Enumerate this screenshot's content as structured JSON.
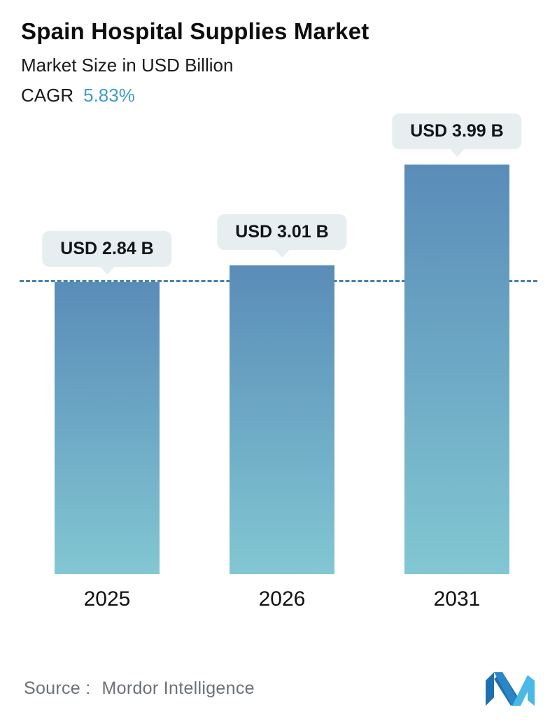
{
  "header": {
    "title": "Spain Hospital Supplies Market",
    "subtitle": "Market Size in USD Billion",
    "cagr_label": "CAGR",
    "cagr_value": "5.83%"
  },
  "chart_data": {
    "type": "bar",
    "title": "Spain Hospital Supplies Market",
    "subtitle": "Market Size in USD Billion",
    "categories": [
      "2025",
      "2026",
      "2031"
    ],
    "values": [
      2.84,
      3.01,
      3.99
    ],
    "value_labels": [
      "USD 2.84 B",
      "USD 3.01 B",
      "USD 3.99 B"
    ],
    "ylim": [
      0,
      4.5
    ],
    "reference_line_value": 2.84,
    "grid": false,
    "legend": "none",
    "bar_gradient_top": "#5a8cb8",
    "bar_gradient_bottom": "#82c7d2"
  },
  "footer": {
    "source_label": "Source :",
    "source_value": "Mordor Intelligence"
  },
  "colors": {
    "accent_cagr": "#3f9bd0",
    "badge_background": "#e7eeef",
    "dashed_line": "#4a80a8",
    "logo_dark_blue": "#1f6fb0",
    "logo_light_blue": "#4ab9e6"
  }
}
